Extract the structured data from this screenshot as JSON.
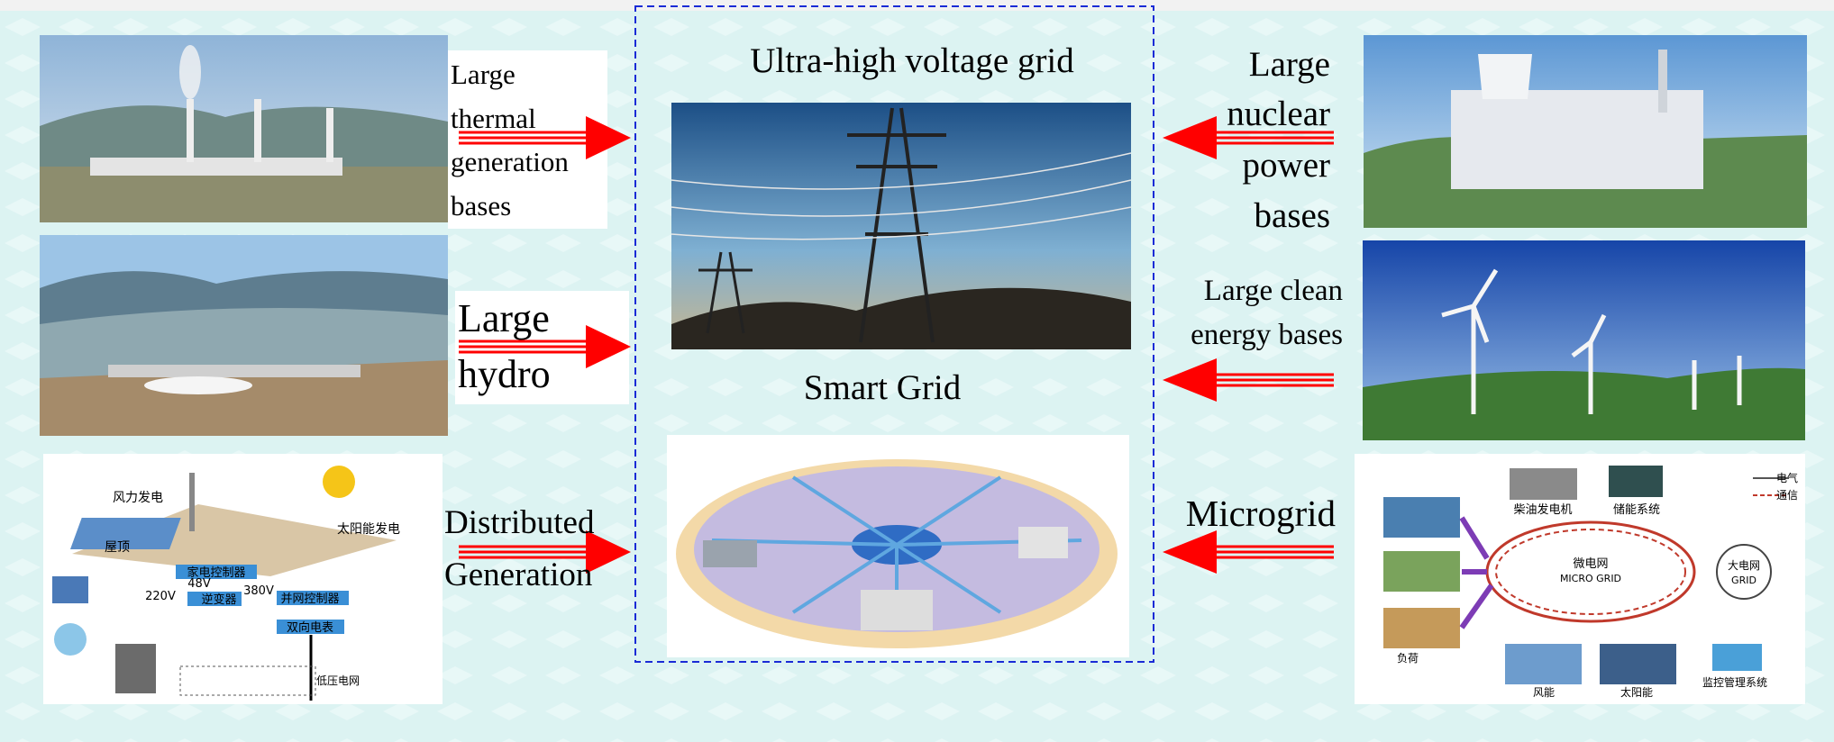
{
  "left": [
    {
      "label_lines": [
        "Large",
        "thermal",
        "generation",
        "bases"
      ]
    },
    {
      "label_lines": [
        "Large",
        "hydro"
      ]
    },
    {
      "label_lines": [
        "Distributed",
        "Generation"
      ]
    }
  ],
  "center": {
    "title": "Ultra-high voltage grid",
    "subtitle": "Smart Grid"
  },
  "right": [
    {
      "label_lines": [
        "Large",
        "nuclear",
        "power",
        "bases"
      ]
    },
    {
      "label_lines": [
        "Large clean",
        "energy bases"
      ]
    },
    {
      "label_lines": [
        "Microgrid"
      ]
    }
  ],
  "image_texts": {
    "distributed": [
      "风力发电",
      "太阳能发电",
      "屋顶",
      "家电控制器",
      "48V",
      "220V",
      "380V",
      "逆变器",
      "并网控制器",
      "双向电表",
      "低压电网"
    ],
    "microgrid": [
      "柴油发电机",
      "储能系统",
      "电气",
      "通信",
      "微电网",
      "MICRO GRID",
      "大电网",
      "GRID",
      "负荷",
      "风能",
      "太阳能",
      "监控管理系统"
    ]
  }
}
